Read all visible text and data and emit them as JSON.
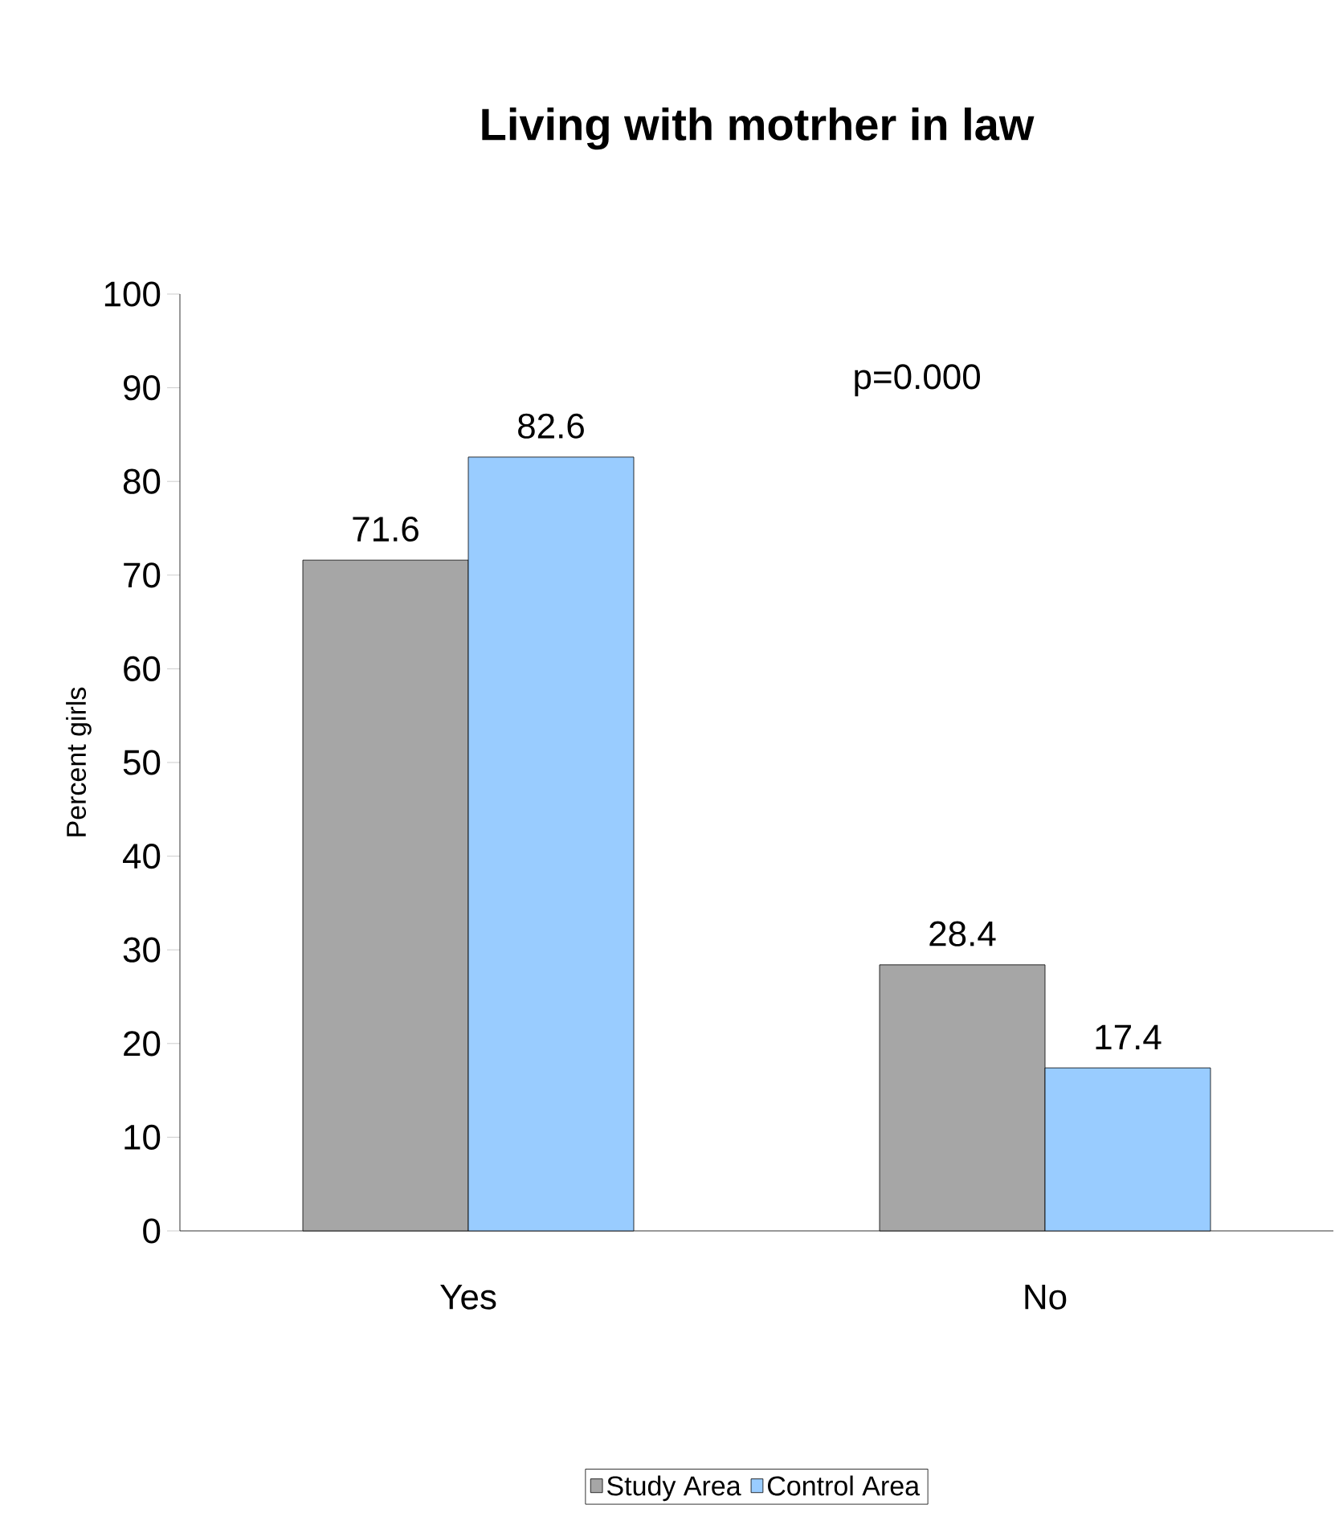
{
  "chart_data": {
    "type": "bar",
    "title": "Living with motrher in law",
    "ylabel": "Percent girls",
    "categories": [
      "Yes",
      "No"
    ],
    "series": [
      {
        "name": "Study Area",
        "color": "#a6a6a6",
        "values": [
          71.6,
          28.4
        ]
      },
      {
        "name": "Control Area",
        "color": "#99ccff",
        "values": [
          82.6,
          17.4
        ]
      }
    ],
    "ylim": [
      0,
      100
    ],
    "yticks": [
      0,
      10,
      20,
      30,
      40,
      50,
      60,
      70,
      80,
      90,
      100
    ],
    "data_labels": true,
    "legend": "bottom",
    "grid": false,
    "annotations": [
      "p=0.000"
    ]
  }
}
